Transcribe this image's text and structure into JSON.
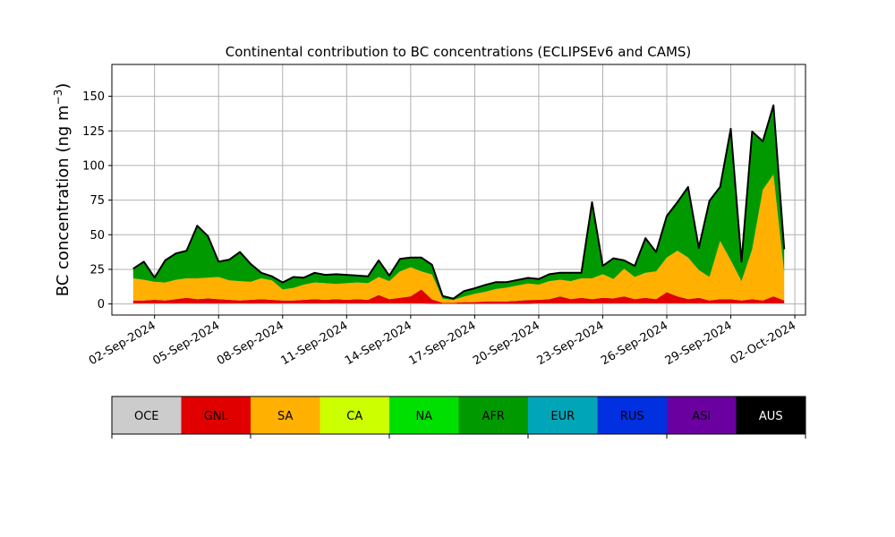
{
  "chart_data": {
    "type": "area",
    "stacked": true,
    "title": "Continental contribution to BC concentrations (ECLIPSEv6 and CAMS)",
    "ylabel": "BC concentration (ng m",
    "ylabel_superscript": "−3",
    "ylabel_close": ")",
    "xlim": [
      "2024-08-31T00:00",
      "2024-10-02T12:00"
    ],
    "ylim": [
      -8,
      173
    ],
    "grid": true,
    "y_ticks": [
      0,
      25,
      50,
      75,
      100,
      125,
      150
    ],
    "x_ticks": [
      {
        "date": "2024-09-02",
        "label": "02-Sep-2024"
      },
      {
        "date": "2024-09-05",
        "label": "05-Sep-2024"
      },
      {
        "date": "2024-09-08",
        "label": "08-Sep-2024"
      },
      {
        "date": "2024-09-11",
        "label": "11-Sep-2024"
      },
      {
        "date": "2024-09-14",
        "label": "14-Sep-2024"
      },
      {
        "date": "2024-09-17",
        "label": "17-Sep-2024"
      },
      {
        "date": "2024-09-20",
        "label": "20-Sep-2024"
      },
      {
        "date": "2024-09-23",
        "label": "23-Sep-2024"
      },
      {
        "date": "2024-09-26",
        "label": "26-Sep-2024"
      },
      {
        "date": "2024-09-29",
        "label": "29-Sep-2024"
      },
      {
        "date": "2024-10-02",
        "label": "02-Oct-2024"
      }
    ],
    "x": [
      "2024-09-01T00:00",
      "2024-09-01T12:00",
      "2024-09-02T00:00",
      "2024-09-02T12:00",
      "2024-09-03T00:00",
      "2024-09-03T12:00",
      "2024-09-04T00:00",
      "2024-09-04T12:00",
      "2024-09-05T00:00",
      "2024-09-05T12:00",
      "2024-09-06T00:00",
      "2024-09-06T12:00",
      "2024-09-07T00:00",
      "2024-09-07T12:00",
      "2024-09-08T00:00",
      "2024-09-08T12:00",
      "2024-09-09T00:00",
      "2024-09-09T12:00",
      "2024-09-10T00:00",
      "2024-09-10T12:00",
      "2024-09-11T00:00",
      "2024-09-11T12:00",
      "2024-09-12T00:00",
      "2024-09-12T12:00",
      "2024-09-13T00:00",
      "2024-09-13T12:00",
      "2024-09-14T00:00",
      "2024-09-14T12:00",
      "2024-09-15T00:00",
      "2024-09-15T12:00",
      "2024-09-16T00:00",
      "2024-09-16T12:00",
      "2024-09-17T00:00",
      "2024-09-17T12:00",
      "2024-09-18T00:00",
      "2024-09-18T12:00",
      "2024-09-19T00:00",
      "2024-09-19T12:00",
      "2024-09-20T00:00",
      "2024-09-20T12:00",
      "2024-09-21T00:00",
      "2024-09-21T12:00",
      "2024-09-22T00:00",
      "2024-09-22T12:00",
      "2024-09-23T00:00",
      "2024-09-23T12:00",
      "2024-09-24T00:00",
      "2024-09-24T12:00",
      "2024-09-25T00:00",
      "2024-09-25T12:00",
      "2024-09-26T00:00",
      "2024-09-26T12:00",
      "2024-09-27T00:00",
      "2024-09-27T12:00",
      "2024-09-28T00:00",
      "2024-09-28T12:00",
      "2024-09-29T00:00",
      "2024-09-29T12:00",
      "2024-09-30T00:00",
      "2024-09-30T12:00",
      "2024-10-01T00:00",
      "2024-10-01T12:00"
    ],
    "series": [
      {
        "name": "OCE",
        "color": "#cccccc",
        "values": [
          0.5,
          0.5,
          0.5,
          0.5,
          0.5,
          0.5,
          0.5,
          0.5,
          0.5,
          0.5,
          0.5,
          0.5,
          0.5,
          0.5,
          0.5,
          0.5,
          0.5,
          0.5,
          0.5,
          0.5,
          0.5,
          0.5,
          0.5,
          0.5,
          0.5,
          0.5,
          0.5,
          0.5,
          0.3,
          0.3,
          0.3,
          0.3,
          0.3,
          0.3,
          0.3,
          0.3,
          0.3,
          0.3,
          0.5,
          0.5,
          0.5,
          0.5,
          0.5,
          0.5,
          0.5,
          0.5,
          0.5,
          0.5,
          0.5,
          0.5,
          0.5,
          0.5,
          0.5,
          0.5,
          0.5,
          0.5,
          0.5,
          0.5,
          0.5,
          0.5,
          0.5,
          0.5
        ]
      },
      {
        "name": "GNL",
        "color": "#e00000",
        "values": [
          2,
          2,
          2.5,
          2,
          3,
          4,
          3,
          3.5,
          3,
          2.5,
          2,
          2.5,
          3,
          2.5,
          2,
          2,
          2.5,
          3,
          2.5,
          3,
          2.5,
          3,
          2.5,
          6,
          3,
          4,
          5,
          10,
          3,
          0.5,
          0.5,
          1,
          1,
          1.5,
          1.5,
          1.5,
          2,
          2.5,
          2.5,
          3,
          5,
          3,
          4,
          3,
          4,
          3.5,
          5,
          3,
          4,
          3,
          8,
          5,
          3,
          4,
          2,
          3,
          3,
          2,
          3,
          2,
          5,
          2
        ]
      },
      {
        "name": "SA",
        "color": "#ffb000",
        "values": [
          16,
          15,
          13,
          13,
          14,
          14,
          15,
          15,
          16,
          14,
          14,
          13,
          15,
          14,
          8,
          9,
          11,
          12,
          12,
          11,
          12,
          12,
          12,
          13,
          13,
          19,
          21,
          13,
          18,
          3,
          2,
          4,
          6,
          7,
          9,
          10,
          11,
          12,
          11,
          13,
          12,
          13,
          14,
          15,
          17,
          14,
          20,
          16,
          18,
          20,
          25,
          33,
          30,
          20,
          17,
          42,
          28,
          14,
          36,
          80,
          88,
          20
        ]
      },
      {
        "name": "CA",
        "color": "#ccff00",
        "values": [
          0,
          0,
          0,
          0,
          0,
          0,
          0,
          0,
          0,
          0,
          0,
          0,
          0,
          0,
          0,
          0,
          0,
          0,
          0,
          0,
          0,
          0,
          0,
          0,
          0,
          0,
          0,
          0,
          0,
          0,
          0,
          0,
          0,
          0,
          0,
          0,
          0,
          0,
          0,
          0,
          0,
          0,
          0,
          0,
          0,
          0,
          0,
          0,
          0,
          0,
          0,
          0,
          0,
          0,
          0,
          0,
          0,
          0,
          0,
          0,
          0,
          0
        ]
      },
      {
        "name": "NA",
        "color": "#00e000",
        "values": [
          0,
          0,
          0,
          0,
          0,
          0,
          0,
          0,
          0,
          0,
          0,
          0,
          0,
          0,
          0,
          0,
          0,
          0,
          0,
          0,
          0,
          0,
          0,
          0,
          0,
          0,
          0,
          0,
          0,
          0,
          0,
          0,
          0,
          0,
          0,
          0,
          0,
          0,
          0,
          0,
          0,
          0,
          0,
          0,
          0,
          0,
          0,
          0,
          0,
          0,
          0,
          0,
          0,
          0,
          0,
          0,
          0,
          0,
          0,
          0,
          0,
          0
        ]
      },
      {
        "name": "AFR",
        "color": "#009a00",
        "values": [
          7,
          13,
          3,
          16,
          19,
          20,
          38,
          30,
          11,
          15,
          21,
          13,
          4,
          3,
          5,
          8,
          5,
          7,
          6,
          7,
          6,
          5,
          5,
          12,
          4,
          9,
          7,
          10,
          7,
          2,
          1,
          4,
          4,
          5,
          5,
          4,
          4,
          4,
          4,
          5,
          5,
          6,
          4,
          55,
          6,
          15,
          6,
          8,
          25,
          14,
          30,
          35,
          51,
          16,
          55,
          39,
          95,
          14,
          85,
          35,
          50,
          17
        ]
      },
      {
        "name": "EUR",
        "color": "#00a6b8",
        "values": [
          0,
          0,
          0,
          0,
          0,
          0,
          0,
          0,
          0,
          0,
          0,
          0,
          0,
          0,
          0,
          0,
          0,
          0,
          0,
          0,
          0,
          0,
          0,
          0,
          0,
          0,
          0,
          0,
          0,
          0,
          0,
          0,
          0,
          0,
          0,
          0,
          0,
          0,
          0,
          0,
          0,
          0,
          0,
          0,
          0,
          0,
          0,
          0,
          0,
          0,
          0,
          0,
          0,
          0,
          0,
          0,
          0,
          0,
          0,
          0,
          0,
          0
        ]
      },
      {
        "name": "RUS",
        "color": "#0030e0",
        "values": [
          0,
          0,
          0,
          0,
          0,
          0,
          0,
          0,
          0,
          0,
          0,
          0,
          0,
          0,
          0,
          0,
          0,
          0,
          0,
          0,
          0,
          0,
          0,
          0,
          0,
          0,
          0,
          0,
          0,
          0,
          0,
          0,
          0,
          0,
          0,
          0,
          0,
          0,
          0,
          0,
          0,
          0,
          0,
          0,
          0,
          0,
          0,
          0,
          0,
          0,
          0,
          0,
          0,
          0,
          0,
          0,
          0,
          0,
          0,
          0,
          0,
          0
        ]
      },
      {
        "name": "ASI",
        "color": "#6a00a0",
        "values": [
          0,
          0,
          0,
          0,
          0,
          0,
          0,
          0,
          0,
          0,
          0,
          0,
          0,
          0,
          0,
          0,
          0,
          0,
          0,
          0,
          0,
          0,
          0,
          0,
          0,
          0,
          0,
          0,
          0,
          0,
          0,
          0,
          0,
          0,
          0,
          0,
          0,
          0,
          0,
          0,
          0,
          0,
          0,
          0,
          0,
          0,
          0,
          0,
          0,
          0,
          0,
          0,
          0,
          0,
          0,
          0,
          0,
          0,
          0,
          0,
          0,
          0
        ]
      },
      {
        "name": "AUS",
        "color": "#000000",
        "values": [
          0,
          0,
          0,
          0,
          0,
          0,
          0,
          0,
          0,
          0,
          0,
          0,
          0,
          0,
          0,
          0,
          0,
          0,
          0,
          0,
          0,
          0,
          0,
          0,
          0,
          0,
          0,
          0,
          0,
          0,
          0,
          0,
          0,
          0,
          0,
          0,
          0,
          0,
          0,
          0,
          0,
          0,
          0,
          0,
          0,
          0,
          0,
          0,
          0,
          0,
          0,
          0,
          0,
          0,
          0,
          0,
          0,
          0,
          0,
          0,
          0,
          0
        ]
      }
    ],
    "legend": {
      "placement": "below",
      "labels": [
        "OCE",
        "GNL",
        "SA",
        "CA",
        "NA",
        "AFR",
        "EUR",
        "RUS",
        "ASI",
        "AUS"
      ],
      "colors": [
        "#cccccc",
        "#e00000",
        "#ffb000",
        "#ccff00",
        "#00e000",
        "#009a00",
        "#00a6b8",
        "#0030e0",
        "#6a00a0",
        "#000000"
      ],
      "text_colors": [
        "#000000",
        "#000000",
        "#000000",
        "#000000",
        "#000000",
        "#000000",
        "#000000",
        "#000000",
        "#000000",
        "#ffffff"
      ]
    }
  }
}
